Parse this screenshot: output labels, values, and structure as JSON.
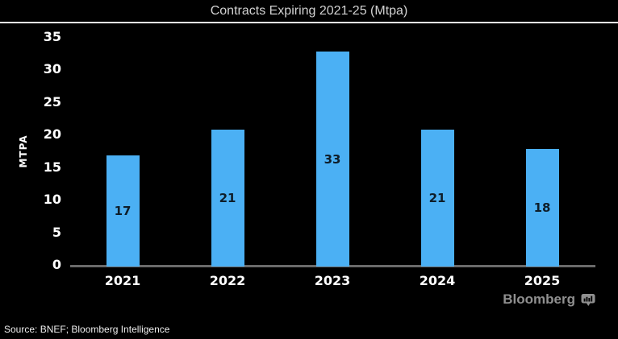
{
  "chart_data": {
    "type": "bar",
    "title": "Contracts Expiring 2021-25 (Mtpa)",
    "categories": [
      "2021",
      "2022",
      "2023",
      "2024",
      "2025"
    ],
    "values": [
      17,
      21,
      33,
      21,
      18
    ],
    "xlabel": "",
    "ylabel": "MTPA",
    "ylim": [
      0,
      35
    ],
    "yticks": [
      0,
      5,
      10,
      15,
      20,
      25,
      30,
      35
    ],
    "grid": false,
    "legend": false,
    "bar_color": "#4bb0f4",
    "bar_label_color": "#0e1e2a",
    "tick_color": "#ffffff",
    "axis_line_color": "#6a6a6a",
    "background_color": "#000000",
    "title_color": "#d2d2d2"
  },
  "footer": {
    "source": "Source: BNEF; Bloomberg Intelligence",
    "brand": "Bloomberg",
    "brand_icon": "chart-bubble-icon"
  }
}
